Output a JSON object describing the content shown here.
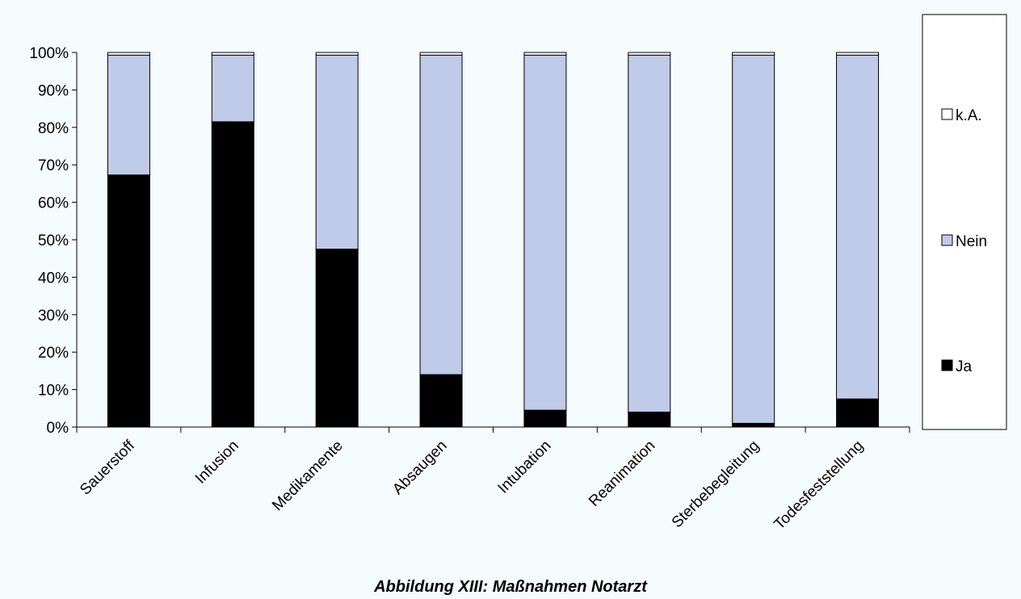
{
  "caption": "Abbildung XIII: Maßnahmen Notarzt",
  "chart_data": {
    "type": "bar",
    "stacked": true,
    "percent_stacked": true,
    "title": "",
    "xlabel": "",
    "ylabel": "",
    "ylim": [
      0,
      100
    ],
    "y_ticks": [
      "0%",
      "10%",
      "20%",
      "30%",
      "40%",
      "50%",
      "60%",
      "70%",
      "80%",
      "90%",
      "100%"
    ],
    "categories": [
      "Sauerstoff",
      "Infusion",
      "Medikamente",
      "Absaugen",
      "Intubation",
      "Reanimation",
      "Sterbebegleitung",
      "Todesfeststellung"
    ],
    "series": [
      {
        "name": "Ja",
        "color": "#000000",
        "values": [
          67.3,
          81.5,
          47.5,
          14.0,
          4.5,
          4.0,
          1.0,
          7.5
        ]
      },
      {
        "name": "Nein",
        "color": "#bfcbe9",
        "values": [
          32.0,
          17.8,
          51.8,
          85.3,
          94.8,
          95.3,
          98.3,
          91.8
        ]
      },
      {
        "name": "k.A.",
        "color": "#ffffff",
        "values": [
          0.7,
          0.7,
          0.7,
          0.7,
          0.7,
          0.7,
          0.7,
          0.7
        ]
      }
    ],
    "legend": {
      "position": "right",
      "order": [
        "k.A.",
        "Nein",
        "Ja"
      ]
    },
    "grid": false
  }
}
